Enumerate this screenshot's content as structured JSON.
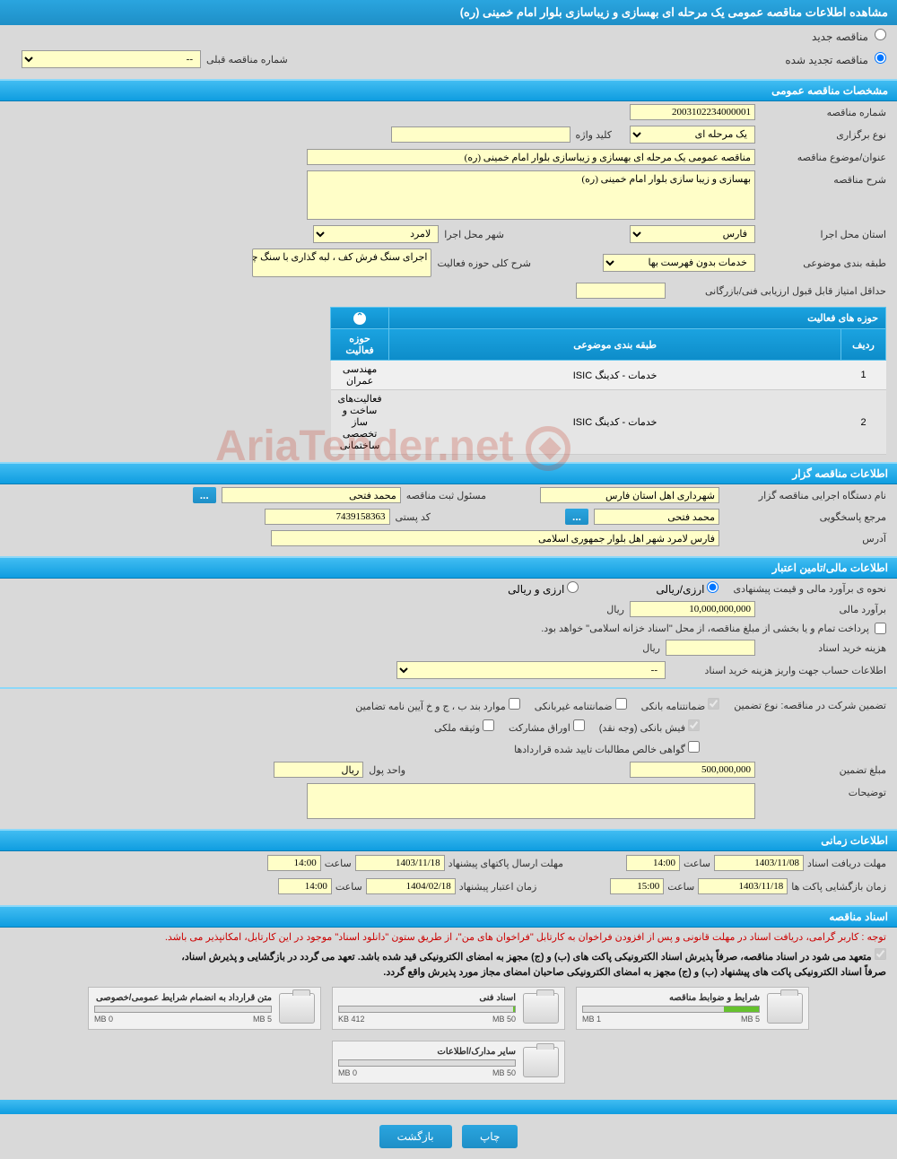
{
  "header_title": "مشاهده اطلاعات مناقصه عمومی یک مرحله ای بهسازی و زیباسازی بلوار امام خمینی (ره)",
  "radio_new": "مناقصه جدید",
  "radio_renewed": "مناقصه تجدید شده",
  "prev_no_label": "شماره مناقصه قبلی",
  "prev_no_value": "--",
  "section1": "مشخصات مناقصه عمومی",
  "num_label": "شماره مناقصه",
  "num_value": "2003102234000001",
  "type_label": "نوع برگزاری",
  "type_value": "یک مرحله ای",
  "keyword_label": "کلید واژه",
  "keyword_value": "",
  "subject_label": "عنوان/موضوع مناقصه",
  "subject_value": "مناقصه عمومی یک مرحله ای بهسازی و زیباسازی بلوار امام خمینی (ره)",
  "desc_label": "شرح مناقصه",
  "desc_value": "بهسازی و زیبا سازی بلوار امام خمینی (ره)",
  "province_label": "استان محل اجرا",
  "province_value": "فارس",
  "city_label": "شهر محل اجرا",
  "city_value": "لامرد",
  "category_label": "طبقه بندی موضوعی",
  "category_value": "خدمات بدون فهرست بها",
  "activity_scope_label": "شرح کلی حوزه فعالیت",
  "activity_scope_value": "اجرای سنگ فرش کف ، لبه گذاری با سنگ چینی",
  "min_score_label": "حداقل امتیاز قابل قبول ارزیابی فنی/بازرگانی",
  "min_score_value": "",
  "activities_title": "حوزه های فعالیت",
  "col_row": "ردیف",
  "col_category": "طبقه بندی موضوعی",
  "col_scope": "حوزه فعالیت",
  "activities": [
    {
      "row": "1",
      "cat": "خدمات - کدینگ ISIC",
      "scope": "مهندسی عمران"
    },
    {
      "row": "2",
      "cat": "خدمات - کدینگ ISIC",
      "scope": "فعالیت‌های ساخت و ساز تخصصی ساختمانی"
    }
  ],
  "section2": "اطلاعات مناقصه گزار",
  "org_label": "نام دستگاه اجرایی مناقصه گزار",
  "org_value": "شهرداری اهل استان فارس",
  "registrar_label": "مسئول ثبت مناقصه",
  "registrar_value": "محمد فتحی",
  "contact_label": "مرجع پاسخگویی",
  "contact_value": "محمد فتحی",
  "postal_label": "کد پستی",
  "postal_value": "7439158363",
  "address_label": "آدرس",
  "address_value": "فارس لامرد شهر اهل بلوار جمهوری اسلامی",
  "section3": "اطلاعات مالی/تامین اعتبار",
  "estimate_method_label": "نحوه ی برآورد مالی و قیمت پیشنهادی",
  "rial_only": "ارزی/ریالی",
  "rial_and": "ارزی و ریالی",
  "estimate_label": "برآورد مالی",
  "estimate_value": "10,000,000,000",
  "currency": "ریال",
  "payment_note": "پرداخت تمام و یا بخشی از مبلغ مناقصه، از محل \"اسناد خزانه اسلامی\" خواهد بود.",
  "doc_fee_label": "هزینه خرید اسناد",
  "doc_fee_value": "",
  "account_label": "اطلاعات حساب جهت واریز هزینه خرید اسناد",
  "account_value": "--",
  "guarantee_label": "تضمین شرکت در مناقصه:    نوع تضمین",
  "cb_bank": "ضمانتنامه بانکی",
  "cb_nonbank": "ضمانتنامه غیربانکی",
  "cb_bylaw": "موارد بند ب ، ج و خ آیین نامه تضامین",
  "cb_cash": "فیش بانکی (وجه نقد)",
  "cb_bonds": "اوراق مشارکت",
  "cb_property": "وثیقه ملکی",
  "cb_receivables": "گواهی خالص مطالبات تایید شده قراردادها",
  "guarantee_amount_label": "مبلغ تضمین",
  "guarantee_amount": "500,000,000",
  "unit_label": "واحد پول",
  "unit_value": "ریال",
  "notes_label": "توضیحات",
  "notes_value": "",
  "section4": "اطلاعات زمانی",
  "deadline_doc_label": "مهلت دریافت اسناد",
  "deadline_doc_date": "1403/11/08",
  "hour_label": "ساعت",
  "deadline_doc_time": "14:00",
  "deadline_pkg_label": "مهلت ارسال پاکتهای پیشنهاد",
  "deadline_pkg_date": "1403/11/18",
  "deadline_pkg_time": "14:00",
  "open_label": "زمان بازگشایی پاکت ها",
  "open_date": "1403/11/18",
  "open_time": "15:00",
  "validity_label": "زمان اعتبار پیشنهاد",
  "validity_date": "1404/02/18",
  "validity_time": "14:00",
  "section5": "اسناد مناقصه",
  "notice_red": "توجه : کاربر گرامی، دریافت اسناد در مهلت قانونی و پس از افزودن فراخوان به کارتابل \"فراخوان های من\"، از طریق ستون \"دانلود اسناد\" موجود در این کارتابل، امکانپذیر می باشد.",
  "commit1": "متعهد می شود در اسناد مناقصه، صرفاً پذیرش اسناد الکترونیکی پاکت های (ب) و (ج) مجهز به امضای الکترونیکی قید شده باشد. تعهد می گردد در بازگشایی و پذیرش اسناد،",
  "commit2": "صرفاً اسناد الکترونیکی پاکت های پیشنهاد (ب) و (ج) مجهز به امضای الکترونیکی صاحبان امضای مجاز مورد پذیرش واقع گردد.",
  "files": [
    {
      "name": "شرایط و ضوابط مناقصه",
      "used": "1 MB",
      "max": "5 MB",
      "pct": 20
    },
    {
      "name": "اسناد فنی",
      "used": "412 KB",
      "max": "50 MB",
      "pct": 1
    },
    {
      "name": "متن قرارداد به انضمام شرایط عمومی/خصوصی",
      "used": "0 MB",
      "max": "5 MB",
      "pct": 0
    },
    {
      "name": "سایر مدارک/اطلاعات",
      "used": "0 MB",
      "max": "50 MB",
      "pct": 0
    }
  ],
  "btn_print": "چاپ",
  "btn_back": "بازگشت",
  "watermark_text": "AriaTender.net"
}
